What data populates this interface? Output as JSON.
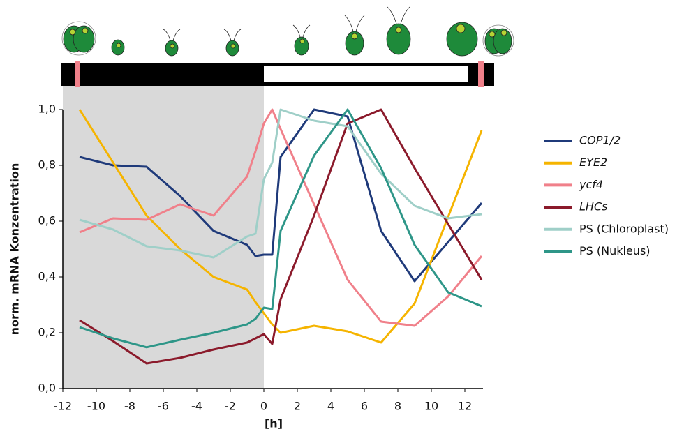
{
  "chart_data": {
    "type": "line",
    "x_label": "[h]",
    "y_label": "norm. mRNA Konzentration",
    "x": [
      -11,
      -9,
      -7,
      -5,
      -3,
      -1,
      -0.5,
      0,
      0.5,
      1,
      3,
      5,
      7,
      9,
      11,
      13
    ],
    "series": [
      {
        "name": "COP1/2",
        "italic": true,
        "color": "#1f3a7a",
        "values": [
          0.83,
          0.8,
          0.795,
          0.69,
          0.565,
          0.515,
          0.475,
          0.48,
          0.48,
          0.83,
          1.0,
          0.975,
          0.565,
          0.385,
          0.525,
          0.665
        ]
      },
      {
        "name": "EYE2",
        "italic": true,
        "color": "#f5b400",
        "values": [
          1.0,
          0.81,
          0.62,
          0.5,
          0.4,
          0.355,
          0.31,
          0.27,
          0.23,
          0.2,
          0.225,
          0.205,
          0.165,
          0.305,
          0.615,
          0.925
        ]
      },
      {
        "name": "ycf4",
        "italic": true,
        "color": "#f0808a",
        "values": [
          0.56,
          0.61,
          0.605,
          0.66,
          0.62,
          0.76,
          0.85,
          0.95,
          1.0,
          0.93,
          0.66,
          0.39,
          0.24,
          0.225,
          0.33,
          0.475
        ]
      },
      {
        "name": "LHCs",
        "italic": true,
        "color": "#8b1a2b",
        "values": [
          0.245,
          0.17,
          0.09,
          0.11,
          0.14,
          0.165,
          0.18,
          0.195,
          0.16,
          0.32,
          0.62,
          0.95,
          1.0,
          0.79,
          0.59,
          0.39
        ]
      },
      {
        "name": "PS (Chloroplast)",
        "italic": false,
        "color": "#9fcfc8",
        "values": [
          0.605,
          0.57,
          0.51,
          0.495,
          0.47,
          0.545,
          0.555,
          0.75,
          0.81,
          1.0,
          0.96,
          0.94,
          0.77,
          0.655,
          0.61,
          0.625
        ]
      },
      {
        "name": "PS (Nukleus)",
        "italic": false,
        "color": "#2e9688",
        "values": [
          0.22,
          0.18,
          0.148,
          0.175,
          0.2,
          0.23,
          0.25,
          0.29,
          0.285,
          0.565,
          0.835,
          1.0,
          0.79,
          0.515,
          0.345,
          0.295
        ]
      }
    ],
    "xlim": [
      -12,
      13
    ],
    "ylim": [
      0,
      1.0
    ],
    "xticks": [
      -12,
      -10,
      -8,
      -6,
      -4,
      -2,
      0,
      2,
      4,
      6,
      8,
      10,
      12
    ],
    "yticks": [
      {
        "value": 0,
        "label": "0,0"
      },
      {
        "value": 0.2,
        "label": "0,2"
      },
      {
        "value": 0.4,
        "label": "0,4"
      },
      {
        "value": 0.6,
        "label": "0,6"
      },
      {
        "value": 0.8,
        "label": "0,8"
      },
      {
        "value": 1.0,
        "label": "1,0"
      }
    ],
    "legend": "right"
  }
}
